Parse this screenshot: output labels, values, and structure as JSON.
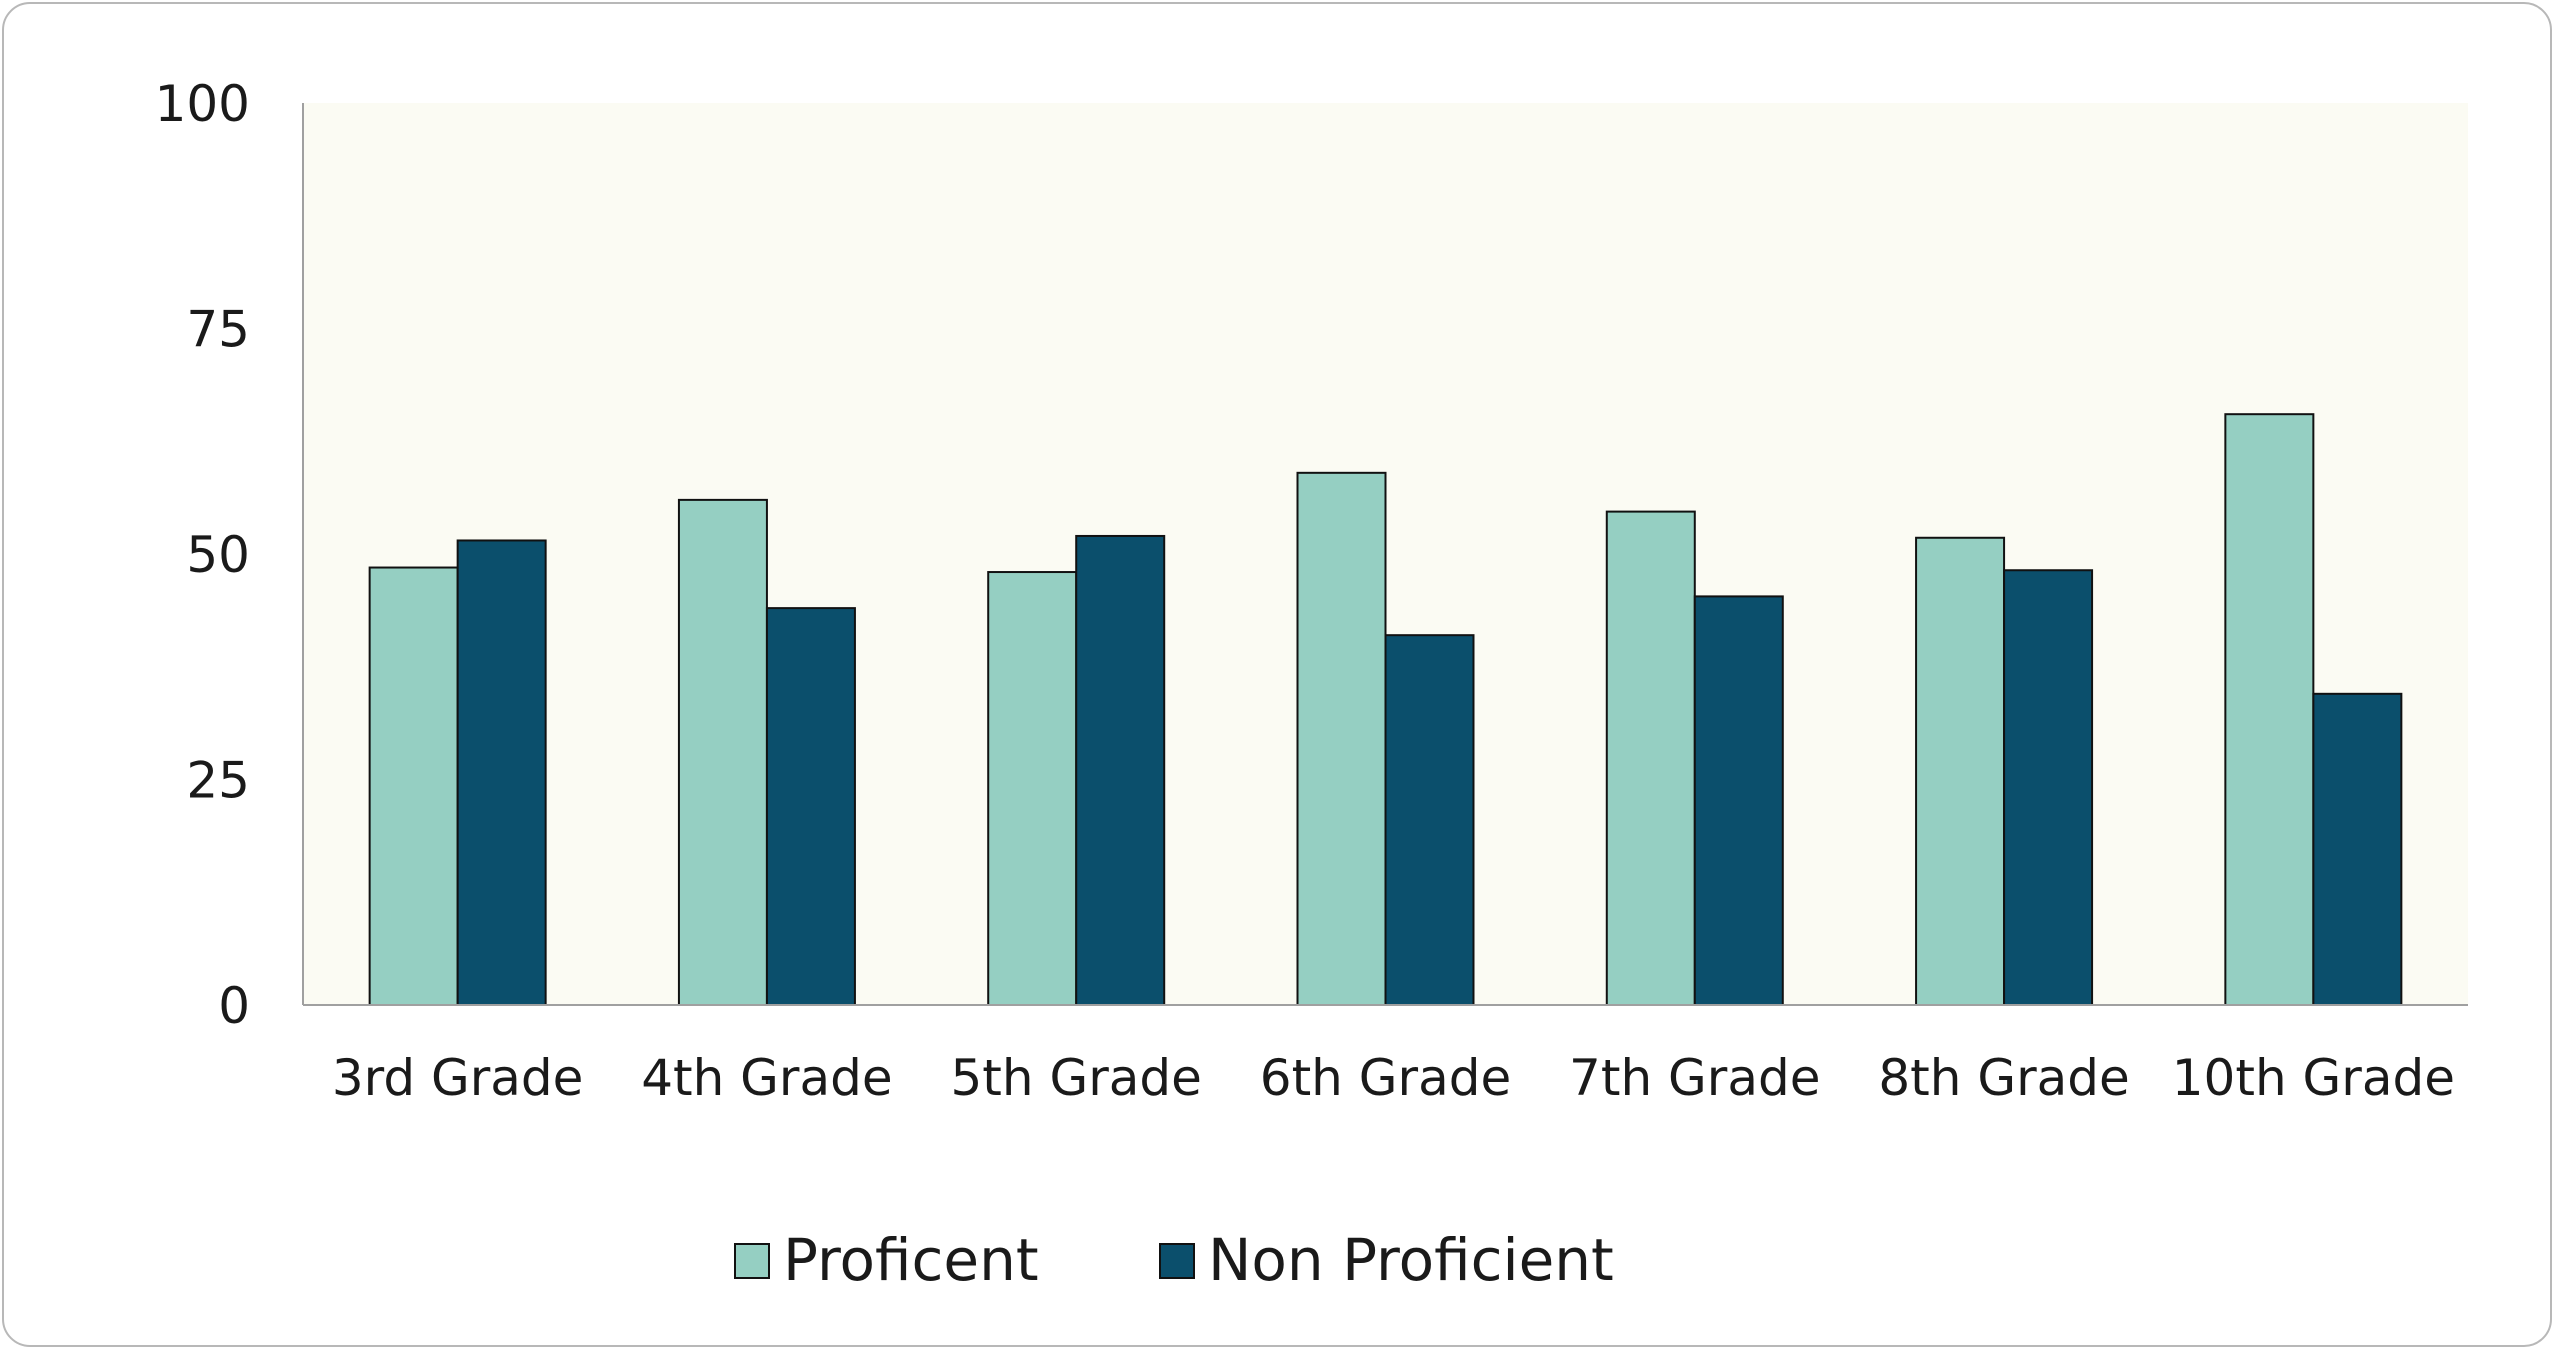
{
  "chart_data": {
    "type": "bar",
    "title": "",
    "xlabel": "",
    "ylabel": "",
    "ylim": [
      0,
      100
    ],
    "yticks": [
      0,
      25,
      50,
      75,
      100
    ],
    "categories": [
      "3rd Grade",
      "4th Grade",
      "5th Grade",
      "6th Grade",
      "7th Grade",
      "8th Grade",
      "10th Grade"
    ],
    "series": [
      {
        "name": "Proficent",
        "color": "#95cfc2",
        "values": [
          48.5,
          56,
          48,
          59,
          54.7,
          51.8,
          65.5
        ]
      },
      {
        "name": "Non Proficient",
        "color": "#0b4f6c",
        "values": [
          51.5,
          44,
          52,
          41,
          45.3,
          48.2,
          34.5
        ]
      }
    ],
    "plot_background": "#fbfbf3",
    "grid": false,
    "legend_position": "bottom"
  }
}
